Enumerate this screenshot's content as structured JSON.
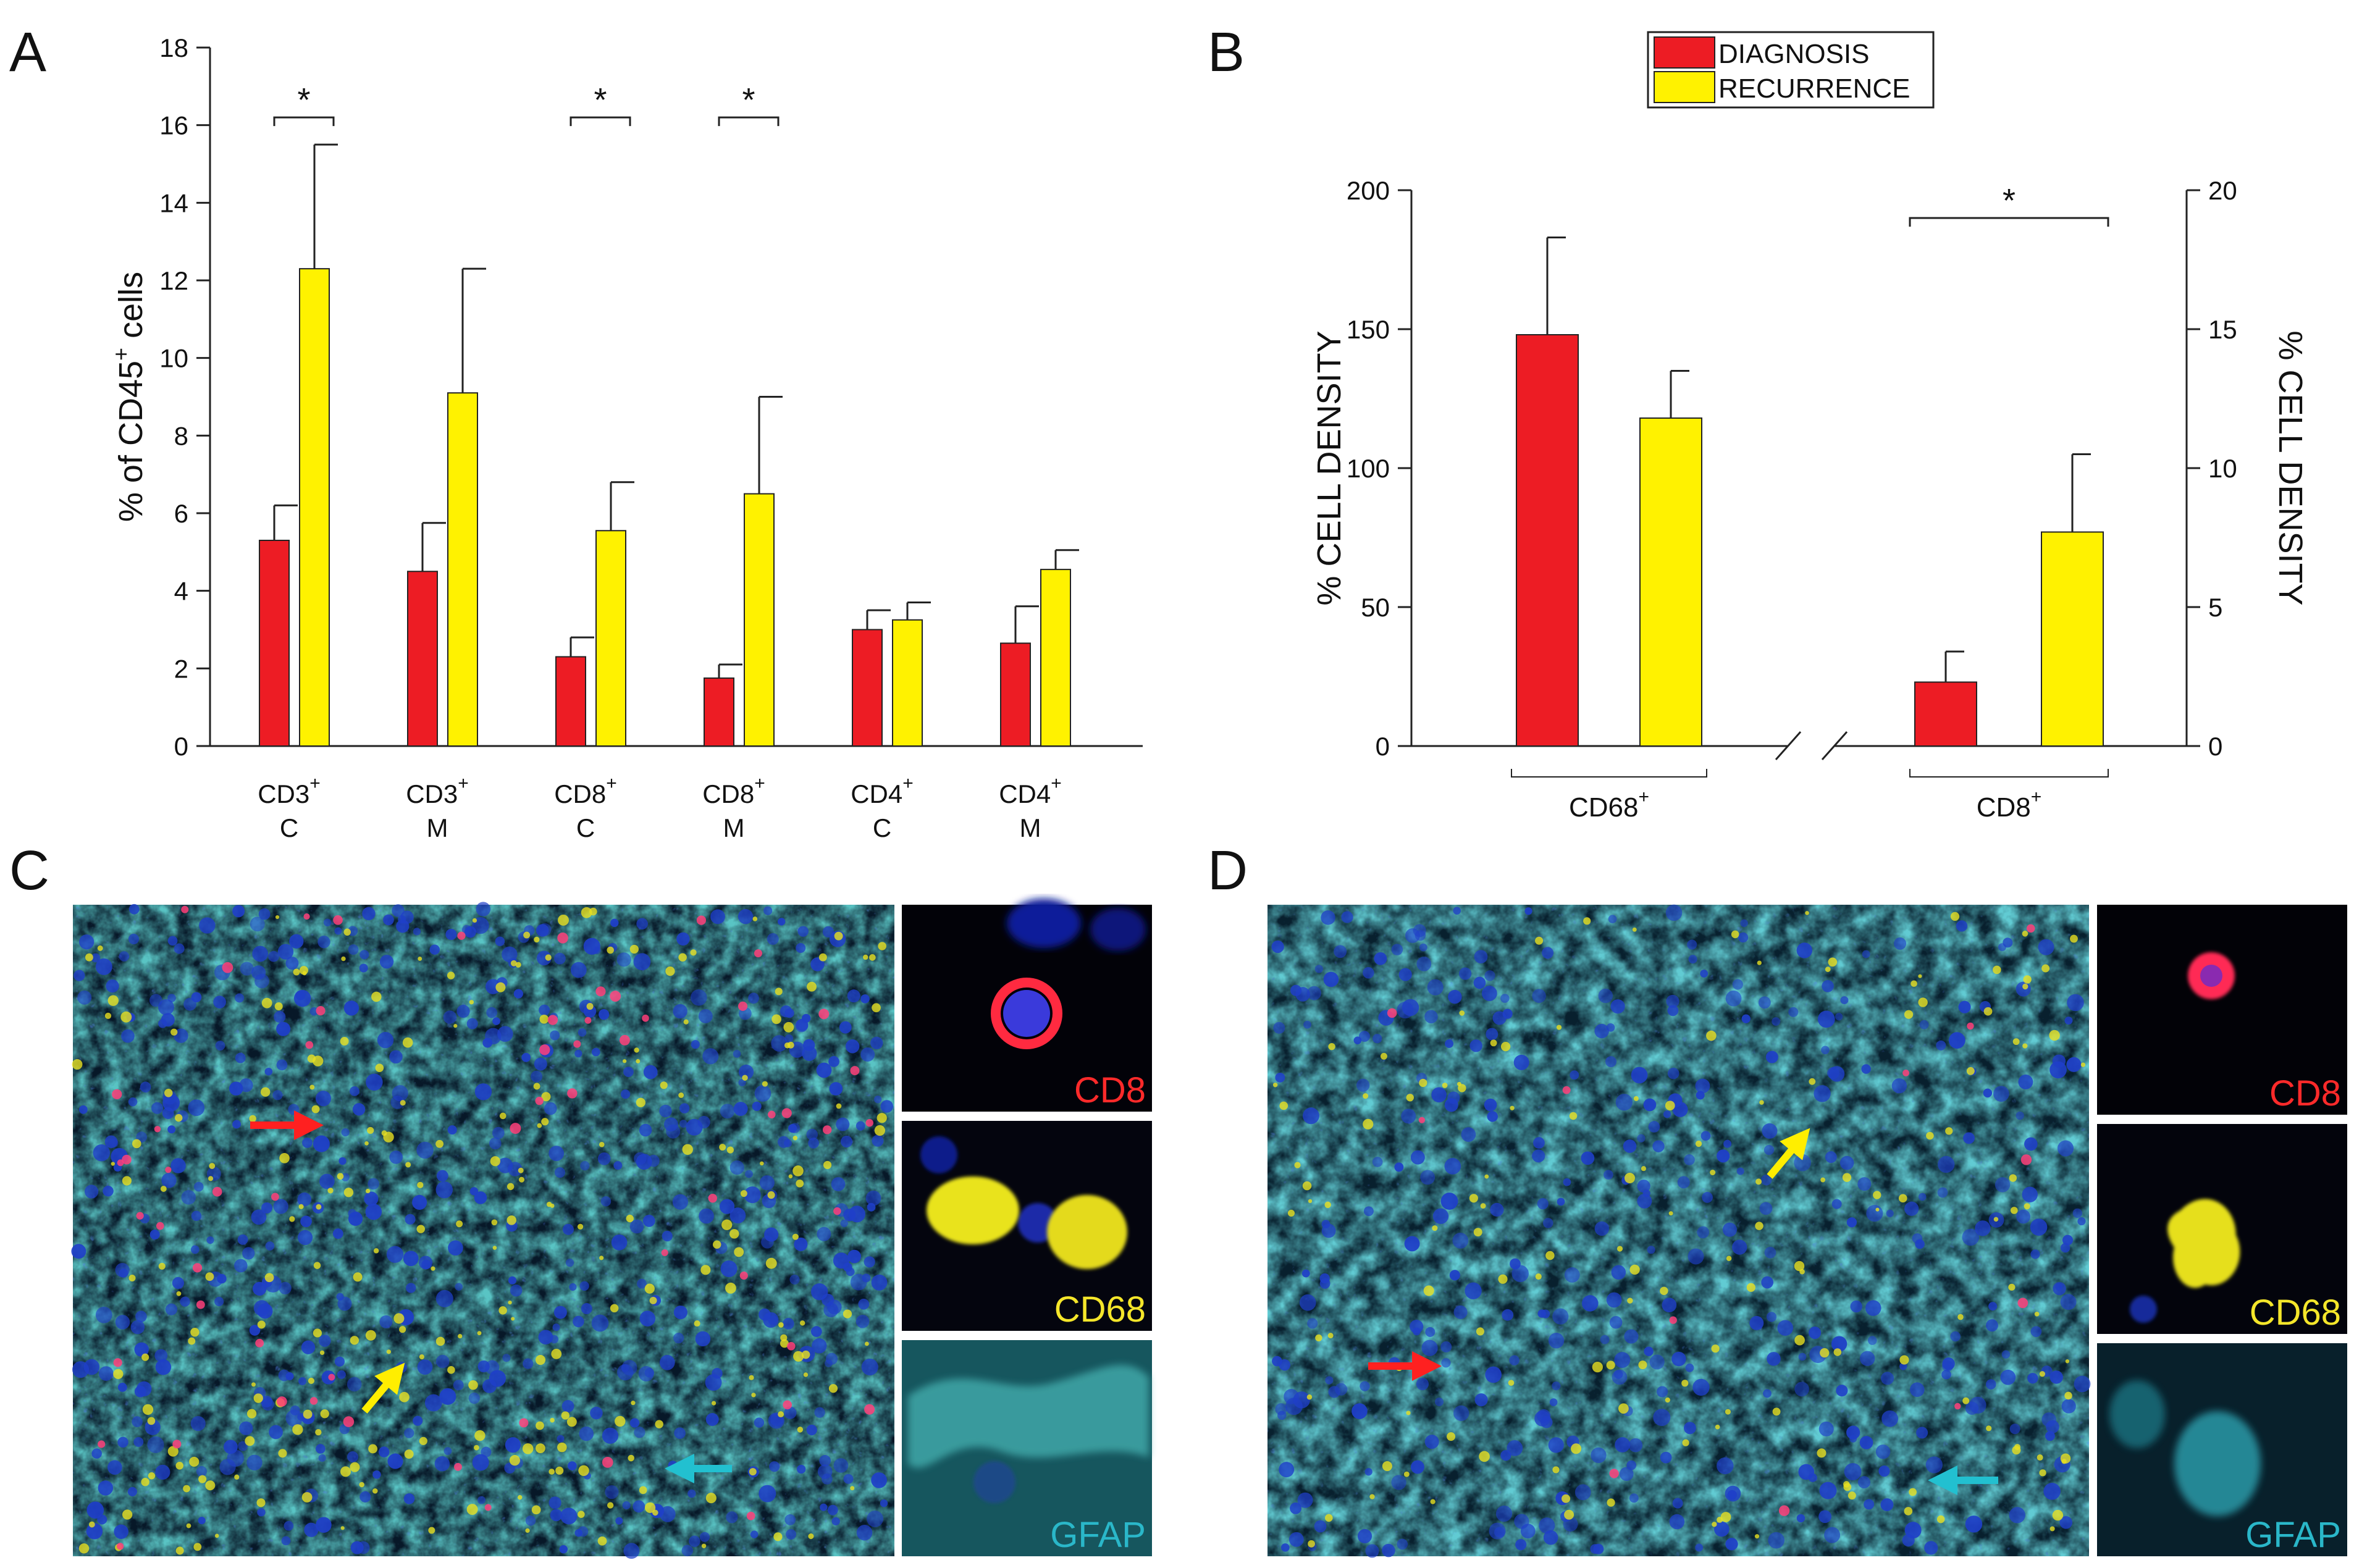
{
  "panels": {
    "a": "A",
    "b": "B",
    "c": "C",
    "d": "D"
  },
  "colors": {
    "diagnosis": "#ed1c24",
    "recurrence": "#fff200",
    "cd8": "#ff2a2a",
    "cd68": "#f5e62a",
    "gfap": "#2ab7c9"
  },
  "chart_data": [
    {
      "id": "A",
      "type": "bar",
      "ylabel_main": "% of CD45",
      "ylabel_sup": "+",
      "ylabel_tail": " cells",
      "ylim": [
        0,
        18
      ],
      "yticks": [
        0,
        2,
        4,
        6,
        8,
        10,
        12,
        14,
        16,
        18
      ],
      "categories": [
        {
          "marker": "CD3",
          "sup": "+",
          "sub": "C"
        },
        {
          "marker": "CD3",
          "sup": "+",
          "sub": "M"
        },
        {
          "marker": "CD8",
          "sup": "+",
          "sub": "C"
        },
        {
          "marker": "CD8",
          "sup": "+",
          "sub": "M"
        },
        {
          "marker": "CD4",
          "sup": "+",
          "sub": "C"
        },
        {
          "marker": "CD4",
          "sup": "+",
          "sub": "M"
        }
      ],
      "series": [
        {
          "name": "DIAGNOSIS",
          "values": [
            5.3,
            4.5,
            2.3,
            1.75,
            3.0,
            2.65
          ],
          "errors": [
            0.9,
            1.25,
            0.5,
            0.35,
            0.5,
            0.95
          ]
        },
        {
          "name": "RECURRENCE",
          "values": [
            12.3,
            9.1,
            5.55,
            6.5,
            3.25,
            4.55
          ],
          "errors": [
            3.2,
            3.2,
            1.25,
            2.5,
            0.45,
            0.5
          ]
        }
      ],
      "significance": [
        {
          "category": 0,
          "label": "*",
          "y": 16.2
        },
        {
          "category": 2,
          "label": "*",
          "y": 16.2
        },
        {
          "category": 3,
          "label": "*",
          "y": 16.2
        }
      ]
    },
    {
      "id": "B",
      "type": "bar",
      "legend": [
        "DIAGNOSIS",
        "RECURRENCE"
      ],
      "legend_position": "top",
      "ylabel_left": "% CELL DENSITY",
      "ylabel_right": "% CELL DENSITY",
      "ylim_left": [
        0,
        200
      ],
      "yticks_left": [
        0,
        50,
        100,
        150,
        200
      ],
      "ylim_right": [
        0,
        20
      ],
      "yticks_right": [
        0,
        5,
        10,
        15,
        20
      ],
      "groups": [
        {
          "label": "CD68",
          "sup": "+",
          "axis": "left",
          "values": [
            148,
            118
          ],
          "errors": [
            35,
            17
          ]
        },
        {
          "label": "CD8",
          "sup": "+",
          "axis": "right",
          "values": [
            2.3,
            7.7
          ],
          "errors": [
            1.1,
            2.8
          ],
          "significance": {
            "label": "*",
            "y": 19.0
          }
        }
      ]
    }
  ],
  "micrographs": {
    "c": {
      "insets": [
        "CD8",
        "CD68",
        "GFAP"
      ]
    },
    "d": {
      "insets": [
        "CD8",
        "CD68",
        "GFAP"
      ]
    }
  }
}
